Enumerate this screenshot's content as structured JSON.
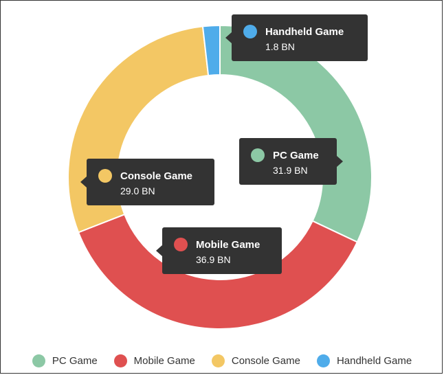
{
  "chart_data": {
    "type": "pie",
    "variant": "donut",
    "unit": "BN",
    "slices": [
      {
        "label": "PC Game",
        "value": 31.9,
        "value_label": "31.9 BN",
        "color": "#8CC8A5"
      },
      {
        "label": "Mobile Game",
        "value": 36.9,
        "value_label": "36.9 BN",
        "color": "#DF5050"
      },
      {
        "label": "Console Game",
        "value": 29.0,
        "value_label": "29.0 BN",
        "color": "#F3C764"
      },
      {
        "label": "Handheld Game",
        "value": 1.8,
        "value_label": "1.8 BN",
        "color": "#4FACEA"
      }
    ],
    "legend_position": "bottom"
  }
}
